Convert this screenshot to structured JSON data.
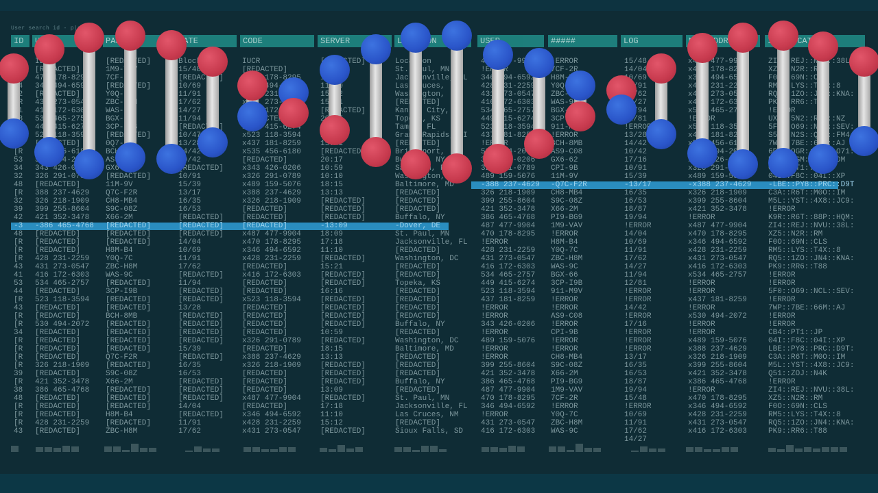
{
  "search_label": "User search id - p|s",
  "headers": [
    "ID",
    "USER",
    "PASS",
    "DATE",
    "CODE",
    "SERVER",
    "LOCATION",
    "USER",
    "#####",
    "LOG",
    "MAC ADDRESS",
    "IP: LOCATION"
  ],
  "columns": {
    "id": [
      "CA",
      "48",
      "[R",
      "34",
      "42",
      "[R",
      "41",
      "53",
      "44",
      "52",
      "43",
      "[R",
      "53",
      "34",
      "32",
      "48",
      "[R",
      "32",
      "39",
      "42",
      "",
      "48",
      "[R",
      "[R",
      "[R",
      "43",
      "41",
      "53",
      "44",
      "[R",
      "43",
      "[R",
      "[R",
      "34",
      "[R",
      "[R",
      "[R",
      "[R",
      "39",
      "[R",
      "38",
      "48",
      "[R",
      "[R",
      "[R",
      "43"
    ],
    "user": [
      "ID",
      "[REDACTED]",
      "470 178-8295",
      "346 494-6592",
      "[REDACTED]",
      "431 273-0547",
      "416 172-6303",
      "534 465-2757",
      "449 415-6274",
      "523 118-3594",
      "[REDACTED]",
      "535 456-6180",
      "530 494-2072",
      "343 426-0206",
      "326 291-0789",
      "[REDACTED]",
      "388 237-4629",
      "326 218-1909",
      "399 255-8604",
      "421 352-3478",
      "",
      "[REDACTED]",
      "[REDACTED]",
      "[REDACTED]",
      "428 231-2259",
      "431 273-0547",
      "416 172-6303",
      "534 465-2757",
      "[REDACTED]",
      "523 118-3594",
      "[REDACTED]",
      "[REDACTED]",
      "530 494-2072",
      "[REDACTED]",
      "[REDACTED]",
      "[REDACTED]",
      "[REDACTED]",
      "326 218-1909",
      "[REDACTED]",
      "421 352-3478",
      "386 465-4768",
      "[REDACTED]",
      "[REDACTED]",
      "[REDACTED]",
      "428 231-2259",
      "[REDACTED]"
    ],
    "pass": [
      "[REDACTED]",
      "1M9-VAV",
      "7CF-2R",
      "[REDACTED]",
      "Y0Q-7C",
      "ZBC-H8M",
      "WAS-9C",
      "BGX-66",
      "3CP-I9B",
      "[REDACTED]",
      "0Q7-FX",
      "BCH-8MB",
      "AS9-C08",
      "GX6-62",
      "[REDACTED]",
      "11M-9V",
      "Q7C-F2R",
      "CH8-MB4",
      "S9C-08Z",
      "X66-2M",
      "",
      "[REDACTED]",
      "[REDACTED]",
      "H8M-B4",
      "Y0Q-7C",
      "ZBC-H8M",
      "WAS-9C",
      "[REDACTED]",
      "3CP-I9B",
      "[REDACTED]",
      "[REDACTED]",
      "BCH-8MB",
      "[REDACTED]",
      "[REDACTED]",
      "[REDACTED]",
      "[REDACTED]",
      "Q7C-F2R",
      "[REDACTED]",
      "S9C-08Z",
      "X66-2M",
      "[REDACTED]",
      "[REDACTED]",
      "[REDACTED]",
      "H8M-B4",
      "[REDACTED]",
      "ZBC-H8M"
    ],
    "date": [
      "Block",
      "15/48",
      "[REDACTED]",
      "10/69",
      "11/91",
      "17/62",
      "14/27",
      "11/94",
      "[REDACTED]",
      "10/47",
      "13/28",
      "14/42",
      "10/42",
      "[REDACTED]",
      "10/91",
      "15/39",
      "13/17",
      "16/35",
      "16/53",
      "[REDACTED]",
      "",
      "[REDACTED]",
      "14/04",
      "10/69",
      "11/91",
      "17/62",
      "[REDACTED]",
      "11/94",
      "[REDACTED]",
      "[REDACTED]",
      "13/28",
      "[REDACTED]",
      "[REDACTED]",
      "[REDACTED]",
      "[REDACTED]",
      "15/39",
      "[REDACTED]",
      "16/35",
      "16/53",
      "[REDACTED]",
      "[REDACTED]",
      "[REDACTED]",
      "14/04",
      "[REDACTED]",
      "11/91",
      "17/62"
    ],
    "code": [
      "IUCR",
      "[REDACTED]",
      "x470 178-8295",
      "x346 494-6592",
      "x428 231-2259",
      "x431 273-0547",
      "x416 172-6303",
      "[REDACTED]",
      "x449 415-6274",
      "x523 118-3594",
      "x437 181-8259",
      "x535 456-6180",
      "[REDACTED]",
      "x343 426-0206",
      "x326 291-0789",
      "x489 159-5076",
      "x388 237-4629",
      "x326 218-1909",
      "[REDACTED]",
      "[REDACTED]",
      "",
      "x487 477-9904",
      "x470 178-8295",
      "x346 494-6592",
      "x428 231-2259",
      "[REDACTED]",
      "x416 172-6303",
      "[REDACTED]",
      "[REDACTED]",
      "x523 118-3594",
      "[REDACTED]",
      "[REDACTED]",
      "[REDACTED]",
      "[REDACTED]",
      "x326 291-0789",
      "[REDACTED]",
      "x388 237-4629",
      "x326 218-1909",
      "[REDACTED]",
      "[REDACTED]",
      "[REDACTED]",
      "x487 477-9904",
      "[REDACTED]",
      "x346 494-6592",
      "x428 231-2259",
      "x431 273-0547"
    ],
    "server": [
      "[REDACTED]",
      "18:09",
      "17:18",
      "11:10",
      "15:12",
      "15:21",
      "[REDACTED]",
      "20:17",
      "16:16",
      "13:57",
      "15:41",
      "[REDACTED]",
      "20:17",
      "10:59",
      "10:10",
      "18:15",
      "13:13",
      "[REDACTED]",
      "[REDACTED]",
      "[REDACTED]",
      "",
      "18:09",
      "17:18",
      "11:10",
      "[REDACTED]",
      "15:21",
      "[REDACTED]",
      "[REDACTED]",
      "16:16",
      "[REDACTED]",
      "[REDACTED]",
      "[REDACTED]",
      "[REDACTED]",
      "10:59",
      "[REDACTED]",
      "18:15",
      "13:13",
      "[REDACTED]",
      "[REDACTED]",
      "[REDACTED]",
      "13:09",
      "[REDACTED]",
      "17:18",
      "11:10",
      "15:12",
      "[REDACTED]"
    ],
    "location": [
      "Location",
      "St. Paul, MN",
      "Jacksonville, FL",
      "Las Cruces,",
      "Washington,",
      "[REDACTED]",
      "Kansas City,",
      "Topeka, KS",
      "Tampa, FL",
      "Grand Rapids, MI",
      "[REDACTED]",
      "Bridgeport,",
      "Buffalo, NY",
      "San Juan, PR",
      "Washington, DC",
      "Baltimore, MD",
      "[REDACTED]",
      "[REDACTED]",
      "[REDACTED]",
      "Buffalo, NY",
      "",
      "St. Paul, MN",
      "Jacksonville, FL",
      "[REDACTED]",
      "Washington, DC",
      "[REDACTED]",
      "[REDACTED]",
      "Topeka, KS",
      "[REDACTED]",
      "[REDACTED]",
      "[REDACTED]",
      "[REDACTED]",
      "Buffalo, NY",
      "[REDACTED]",
      "Washington, DC",
      "Baltimore, MD",
      "[REDACTED]",
      "[REDACTED]",
      "[REDACTED]",
      "Buffalo, NY",
      "[REDACTED]",
      "St. Paul, MN",
      "Jacksonville, FL",
      "Las Cruces, NM",
      "[REDACTED]",
      "Sioux Falls, SD"
    ],
    "user2": [
      "487 477-9904",
      "!ERROR",
      "346 494-6592",
      "428 231-2259",
      "431 273-0547",
      "416 172-6303",
      "534 465-2757",
      "449 415-6274",
      "523 118-3594",
      "437 181-8259",
      "!ERROR",
      "530 494-2072",
      "343 426-0206",
      "326 291-0789",
      "489 159-5076",
      "",
      "326 218-1909",
      "399 255-8604",
      "421 352-3478",
      "386 465-4768",
      "487 477-9904",
      "470 178-8295",
      "!ERROR",
      "428 231-2259",
      "431 273-0547",
      "416 172-6303",
      "534 465-2757",
      "449 415-6274",
      "523 118-3594",
      "437 181-8259",
      "!ERROR",
      "!ERROR",
      "343 426-0206",
      "!ERROR",
      "489 159-5076",
      "!ERROR",
      "!ERROR",
      "399 255-8604",
      "421 352-3478",
      "386 465-4768",
      "487 477-9904",
      "470 178-8295",
      "346 494-6592",
      "!ERROR",
      "431 273-0547",
      "416 172-6303"
    ],
    "hash": [
      "!ERROR",
      "7CF-2R",
      "H8M-B4",
      "Y0Q-7C",
      "ZBC-H8M",
      "WAS-9C",
      "BGX-66",
      "3CP-I9B",
      "911-M9V",
      "!ERROR",
      "BCH-8MB",
      "AS9-C08",
      "GX6-62",
      "CPI-9B",
      "11M-9V",
      "",
      "CH8-MB4",
      "S9C-08Z",
      "X66-2M",
      "PI9-BG9",
      "1M9-VAV",
      "!ERROR",
      "H8M-B4",
      "Y0Q-7C",
      "ZBC-H8M",
      "WAS-9C",
      "BGX-66",
      "3CP-I9B",
      "911-M9V",
      "!ERROR",
      "!ERROR",
      "AS9-C08",
      "!ERROR",
      "CPI-9B",
      "!ERROR",
      "!ERROR",
      "CH8-MB4",
      "S9C-08Z",
      "X66-2M",
      "PI9-BG9",
      "1M9-VAV",
      "7CF-2R",
      "!ERROR",
      "Y0Q-7C",
      "ZBC-H8M",
      "WAS-9C"
    ],
    "log": [
      "15/48",
      "14/04",
      "10/69",
      "11/91",
      "17/62",
      "14/27",
      "11/94",
      "12/81",
      "!ERROR",
      "13/28",
      "14/42",
      "10/42",
      "17/16",
      "10/91",
      "15/39",
      "",
      "16/35",
      "16/53",
      "18/87",
      "19/94",
      "!ERROR",
      "14/04",
      "10/69",
      "11/91",
      "17/62",
      "14/27",
      "11/94",
      "12/81",
      "!ERROR",
      "!ERROR",
      "14/42",
      "!ERROR",
      "17/16",
      "!ERROR",
      "!ERROR",
      "!ERROR",
      "13/17",
      "16/35",
      "16/53",
      "18/87",
      "19/94",
      "15/48",
      "!ERROR",
      "10/69",
      "11/91",
      "17/62",
      "14/27"
    ],
    "mac": [
      "x487 477-9904",
      "x470 178-8295",
      "x346 494-6592",
      "x428 231-2259",
      "x431 273-0547",
      "x416 172-6303",
      "x534 465-2757",
      "!ERROR",
      "x523 118-3594",
      "x437 181-8259",
      "x535 456-6180",
      "x530 494-2072",
      "x343 426-0206",
      "x326 291-0789",
      "x489 159-5076",
      "",
      "x326 218-1909",
      "x399 255-8604",
      "x421 352-3478",
      "!ERROR",
      "x487 477-9904",
      "x470 178-8295",
      "x346 494-6592",
      "x428 231-2259",
      "x431 273-0547",
      "x416 172-6303",
      "x534 465-2757",
      "!ERROR",
      "!ERROR",
      "x437 181-8259",
      "!ERROR",
      "x530 494-2072",
      "!ERROR",
      "!ERROR",
      "x489 159-5076",
      "x388 237-4629",
      "x326 218-1909",
      "x399 255-8604",
      "x421 352-3478",
      "x386 465-4768",
      "!ERROR",
      "x470 178-8295",
      "x346 494-6592",
      "x428 231-2259",
      "x431 273-0547",
      "x416 172-6303"
    ],
    "ip": [
      "ZI4::REJ::NVU::38L:",
      "XZ5::N2R::RM",
      "F0O::69N::CLS",
      "RM5::LYS::T4X::8",
      "RQ5::1ZO::JN4::KNA:",
      "PK9::RR6::T88",
      "!ERROR",
      "UX1::5N2::R7D::NZ",
      "5F0::O69::NCL::SEV:",
      "S5E::N2S::Q7L::FM4",
      "7WP::7BE::66M::AJ",
      "6P5::OGR::H6Q::O71:",
      "E7T::BGM::U46::DM",
      "CB4::PT1::JP",
      "04I::F8C::04I::XP",
      "",
      "C3A::R6T::M0O::IM",
      "M5L::YST::4X8::JC9:",
      "!ERROR",
      "K9R::R6T::88P::HQM:",
      "ZI4::REJ::NVU::38L:",
      "XZ5::N2R::RM",
      "F0O::69N::CLS",
      "RM5::LYS::T4X::8",
      "RQ5::1ZO::JN4::KNA:",
      "PK9::RR6::T88",
      "!ERROR",
      "!ERROR",
      "5F0::O69::NCL::SEV:",
      "!ERROR",
      "7WP::7BE::66M::AJ",
      "!ERROR",
      "!ERROR",
      "CB4::PT1::JP",
      "04I::F8C::04I::XP",
      "LBE::PY8::PRC::D9T:",
      "C3A::R6T::M0O::IM",
      "M5L::YST::4X8::JC9:",
      "Q51::ZOJ::N4K",
      "!ERROR",
      "ZI4::REJ::NVU::38L:",
      "XZ5::N2R::RM",
      "F0O::69N::CLS",
      "RM5::LYS::T4X::8",
      "RQ5::1ZO::JN4::KNA:",
      "PK9::RR6::T88"
    ]
  },
  "highlight_left": {
    "id": "-3",
    "user": "-386 465-4768",
    "pass": "[REDACTED]",
    "date": "[REDACTED]",
    "code": "[REDACTED]",
    "server": "-13:09",
    "location": "-Dover, DE"
  },
  "highlight_right": {
    "user": "-388 237-4629",
    "hash": "-Q7C-F2R",
    "log": "-13/17",
    "mac": "-x388 237-4629",
    "ip": "-LBE::PY8::PRC::D9T"
  },
  "colors": {
    "background": "#0f2c35",
    "header": "#1f8582",
    "highlight": "#2a8dbf",
    "text": "#7c969c",
    "molecule_red": "#c73a4e",
    "molecule_blue": "#2a55c9"
  }
}
